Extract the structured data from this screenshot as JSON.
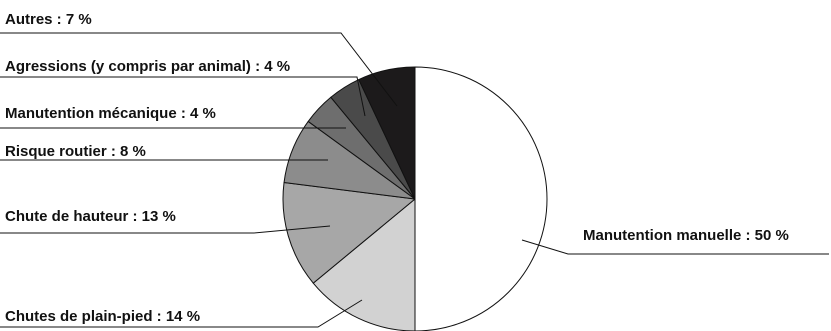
{
  "chart_data": {
    "type": "pie",
    "title": "",
    "slices": [
      {
        "label": "Manutention manuelle : 50 %",
        "value": 50,
        "color": "#ffffff"
      },
      {
        "label": "Chutes de plain-pied : 14 %",
        "value": 14,
        "color": "#d2d2d2"
      },
      {
        "label": "Chute de hauteur : 13 %",
        "value": 13,
        "color": "#a7a7a7"
      },
      {
        "label": "Risque routier : 8 %",
        "value": 8,
        "color": "#8c8c8c"
      },
      {
        "label": "Manutention mécanique : 4 %",
        "value": 4,
        "color": "#6e6e6e"
      },
      {
        "label": "Agressions (y compris par animal) : 4 %",
        "value": 4,
        "color": "#4a4a4a"
      },
      {
        "label": "Autres : 7 %",
        "value": 7,
        "color": "#1c1a1b"
      }
    ]
  }
}
